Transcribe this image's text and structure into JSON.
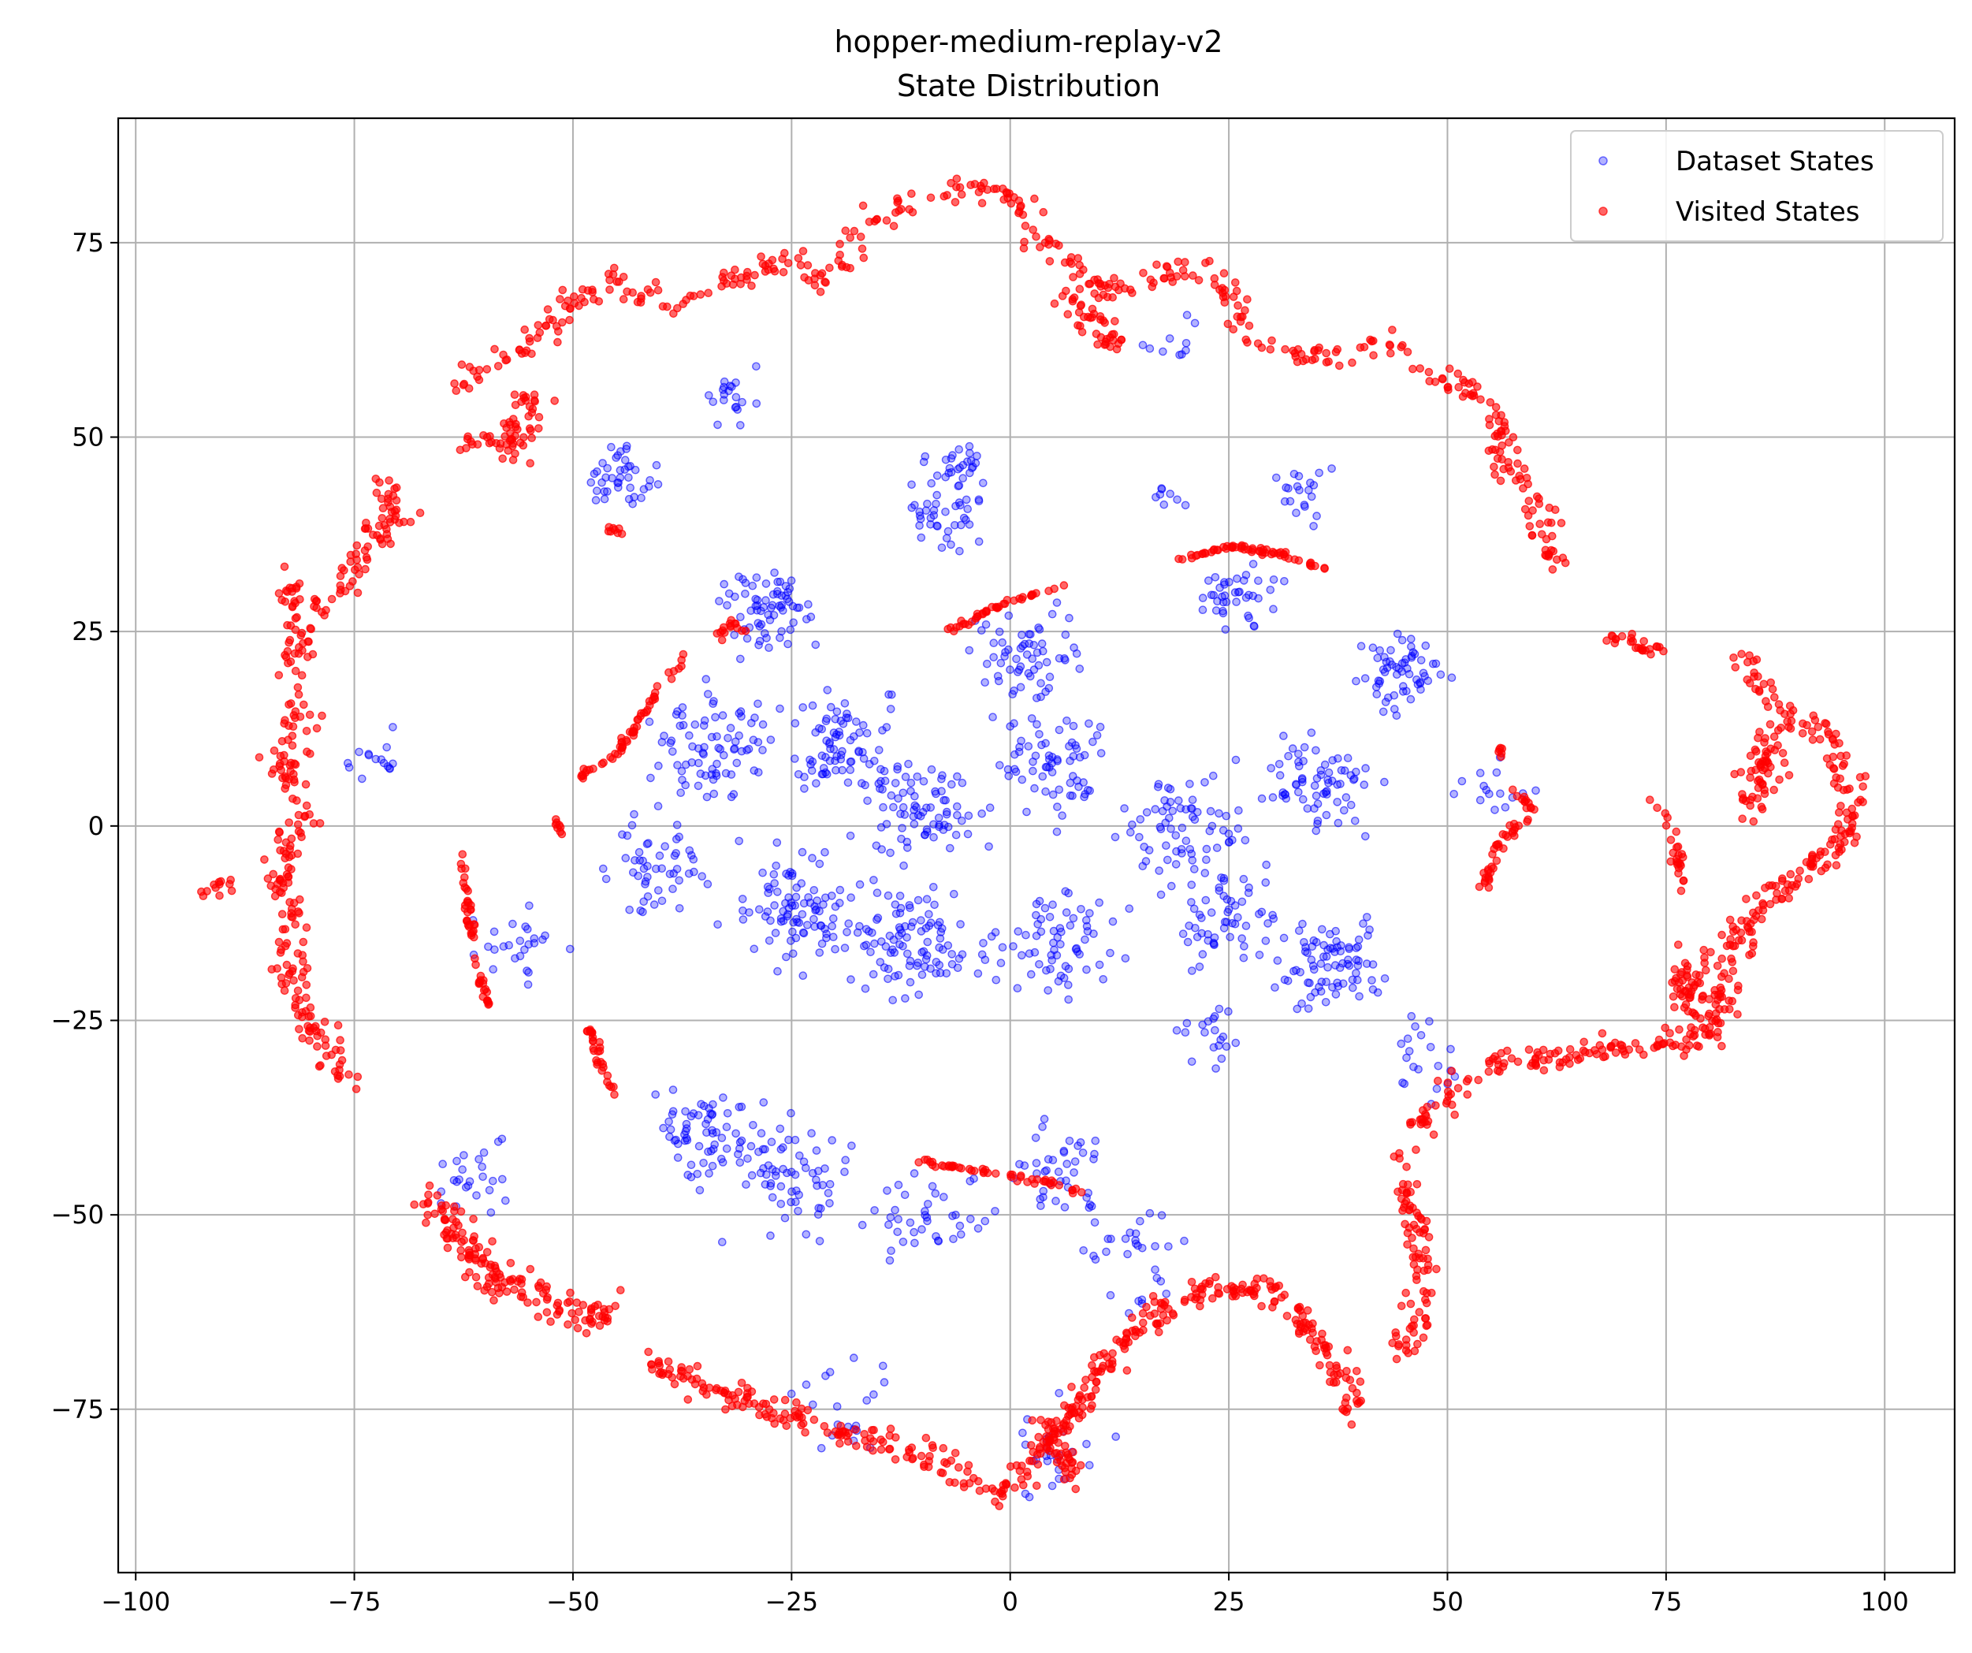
{
  "chart_data": {
    "type": "scatter",
    "title_lines": [
      "hopper-medium-replay-v2",
      "State Distribution"
    ],
    "xlabel": "",
    "ylabel": "",
    "xlim": [
      -102,
      108
    ],
    "ylim": [
      -96,
      91
    ],
    "x_ticks": [
      -100,
      -75,
      -50,
      -25,
      0,
      25,
      50,
      75,
      100
    ],
    "y_ticks": [
      -75,
      -50,
      -25,
      0,
      25,
      50,
      75
    ],
    "x_tick_labels": [
      "−100",
      "−75",
      "−50",
      "−25",
      "0",
      "25",
      "50",
      "75",
      "100"
    ],
    "y_tick_labels": [
      "−75",
      "−50",
      "−25",
      "0",
      "25",
      "50",
      "75"
    ],
    "grid": true,
    "legend_position": "top-right",
    "series": [
      {
        "name": "Dataset States",
        "color": "#0000ff",
        "clusters": [
          {
            "cx": -28,
            "cy": 28,
            "spread": 5,
            "count": 70
          },
          {
            "cx": -35,
            "cy": 10,
            "spread": 6,
            "count": 80
          },
          {
            "cx": -20,
            "cy": 12,
            "spread": 6,
            "count": 80
          },
          {
            "cx": -8,
            "cy": 40,
            "spread": 4,
            "count": 40
          },
          {
            "cx": -6,
            "cy": 47,
            "spread": 3,
            "count": 25
          },
          {
            "cx": 2,
            "cy": 22,
            "spread": 5,
            "count": 60
          },
          {
            "cx": 5,
            "cy": 8,
            "spread": 6,
            "count": 70
          },
          {
            "cx": -10,
            "cy": 2,
            "spread": 6,
            "count": 80
          },
          {
            "cx": -25,
            "cy": -10,
            "spread": 6,
            "count": 90
          },
          {
            "cx": -12,
            "cy": -15,
            "spread": 6,
            "count": 100
          },
          {
            "cx": 5,
            "cy": -15,
            "spread": 6,
            "count": 70
          },
          {
            "cx": 20,
            "cy": 0,
            "spread": 6,
            "count": 70
          },
          {
            "cx": 35,
            "cy": 5,
            "spread": 6,
            "count": 70
          },
          {
            "cx": 25,
            "cy": -12,
            "spread": 5,
            "count": 60
          },
          {
            "cx": 37,
            "cy": -18,
            "spread": 5,
            "count": 80
          },
          {
            "cx": 45,
            "cy": 20,
            "spread": 4,
            "count": 60
          },
          {
            "cx": 26,
            "cy": 30,
            "spread": 4,
            "count": 40
          },
          {
            "cx": -40,
            "cy": -5,
            "spread": 5,
            "count": 50
          },
          {
            "cx": -35,
            "cy": -40,
            "spread": 5,
            "count": 70
          },
          {
            "cx": -25,
            "cy": -45,
            "spread": 6,
            "count": 60
          },
          {
            "cx": -10,
            "cy": -50,
            "spread": 6,
            "count": 40
          },
          {
            "cx": 5,
            "cy": -45,
            "spread": 5,
            "count": 40
          },
          {
            "cx": 15,
            "cy": -55,
            "spread": 6,
            "count": 30
          },
          {
            "cx": -45,
            "cy": 45,
            "spread": 4,
            "count": 40
          },
          {
            "cx": -32,
            "cy": 55,
            "spread": 3,
            "count": 20
          },
          {
            "cx": -57,
            "cy": -15,
            "spread": 4,
            "count": 25
          },
          {
            "cx": -60,
            "cy": -45,
            "spread": 4,
            "count": 25
          },
          {
            "cx": -73,
            "cy": 9,
            "spread": 3,
            "count": 15
          },
          {
            "cx": 33,
            "cy": 43,
            "spread": 3,
            "count": 20
          },
          {
            "cx": 18,
            "cy": 42,
            "spread": 2,
            "count": 8
          },
          {
            "cx": -20,
            "cy": -75,
            "spread": 6,
            "count": 20
          },
          {
            "cx": 5,
            "cy": -80,
            "spread": 5,
            "count": 25
          },
          {
            "cx": 20,
            "cy": 62,
            "spread": 3,
            "count": 10
          },
          {
            "cx": 55,
            "cy": 5,
            "spread": 4,
            "count": 15
          },
          {
            "cx": 47,
            "cy": -30,
            "spread": 4,
            "count": 20
          },
          {
            "cx": 22,
            "cy": -28,
            "spread": 4,
            "count": 20
          }
        ]
      },
      {
        "name": "Visited States",
        "color": "#ff0000",
        "paths": [
          {
            "points": [
              [
                -63,
                57
              ],
              [
                -55,
                62
              ],
              [
                -50,
                67
              ],
              [
                -45,
                71
              ],
              [
                -42,
                68
              ],
              [
                -38,
                67
              ],
              [
                -33,
                70
              ],
              [
                -27,
                72
              ],
              [
                -25,
                74
              ],
              [
                -22,
                70
              ],
              [
                -20,
                70
              ],
              [
                -17,
                77
              ],
              [
                -12,
                80
              ],
              [
                -5,
                82
              ],
              [
                0,
                81
              ],
              [
                3,
                76
              ],
              [
                7,
                72
              ],
              [
                12,
                69
              ],
              [
                16,
                71
              ],
              [
                22,
                71
              ],
              [
                25,
                69
              ],
              [
                28,
                62
              ],
              [
                32,
                61
              ],
              [
                38,
                60
              ],
              [
                44,
                62
              ],
              [
                48,
                57
              ],
              [
                52,
                57
              ],
              [
                55,
                54
              ],
              [
                57,
                45
              ],
              [
                59,
                45
              ],
              [
                61,
                38
              ],
              [
                63,
                33
              ]
            ],
            "spread": 1.5,
            "count": 420
          },
          {
            "points": [
              [
                -62,
                50
              ],
              [
                -57,
                49
              ],
              [
                -54,
                56
              ]
            ],
            "spread": 2,
            "count": 60
          },
          {
            "points": [
              [
                6,
                68
              ],
              [
                10,
                64
              ],
              [
                12,
                62
              ]
            ],
            "spread": 1.5,
            "count": 40
          },
          {
            "points": [
              [
                -73,
                46
              ],
              [
                -70,
                40
              ],
              [
                -74,
                35
              ],
              [
                -76,
                30
              ],
              [
                -79,
                28
              ],
              [
                -83,
                32
              ],
              [
                -81,
                25
              ],
              [
                -82,
                18
              ],
              [
                -81,
                12
              ],
              [
                -84,
                9
              ],
              [
                -80,
                2
              ],
              [
                -84,
                -5
              ],
              [
                -82,
                -12
              ],
              [
                -82,
                -20
              ],
              [
                -80,
                -25
              ],
              [
                -76,
                -33
              ]
            ],
            "spread": 1.8,
            "count": 300
          },
          {
            "points": [
              [
                -92,
                -8
              ],
              [
                -89,
                -7
              ]
            ],
            "spread": 1,
            "count": 12
          },
          {
            "points": [
              [
                -67,
                -48
              ],
              [
                -63,
                -52
              ],
              [
                -60,
                -58
              ],
              [
                -55,
                -60
              ],
              [
                -48,
                -63
              ],
              [
                -45,
                -62
              ]
            ],
            "spread": 2,
            "count": 150
          },
          {
            "points": [
              [
                -41,
                -69
              ],
              [
                -35,
                -72
              ],
              [
                -28,
                -75
              ],
              [
                -20,
                -78
              ],
              [
                -12,
                -80
              ],
              [
                -6,
                -83
              ],
              [
                -2,
                -86
              ],
              [
                0,
                -85
              ],
              [
                4,
                -80
              ],
              [
                8,
                -75
              ],
              [
                10,
                -70
              ],
              [
                13,
                -67
              ],
              [
                17,
                -62
              ],
              [
                23,
                -59
              ],
              [
                30,
                -60
              ],
              [
                35,
                -66
              ],
              [
                38,
                -71
              ],
              [
                39,
                -74
              ],
              [
                38,
                -76
              ]
            ],
            "spread": 1.5,
            "count": 420
          },
          {
            "points": [
              [
                3,
                -77
              ],
              [
                6,
                -80
              ],
              [
                8,
                -85
              ]
            ],
            "spread": 1.5,
            "count": 40
          },
          {
            "points": [
              [
                45,
                -68
              ],
              [
                47,
                -62
              ],
              [
                47,
                -55
              ],
              [
                46,
                -48
              ],
              [
                45,
                -43
              ],
              [
                46,
                -40
              ],
              [
                48,
                -37
              ],
              [
                52,
                -33
              ],
              [
                57,
                -30
              ],
              [
                62,
                -30
              ],
              [
                68,
                -29
              ],
              [
                72,
                -28
              ],
              [
                75,
                -28
              ],
              [
                77,
                -28
              ],
              [
                80,
                -27
              ],
              [
                82,
                -20
              ],
              [
                83,
                -15
              ],
              [
                86,
                -10
              ],
              [
                89,
                -8
              ],
              [
                92,
                -5
              ],
              [
                96,
                0
              ],
              [
                96,
                6
              ],
              [
                93,
                12
              ],
              [
                89,
                14
              ],
              [
                86,
                18
              ],
              [
                84,
                23
              ]
            ],
            "spread": 1.5,
            "count": 420
          },
          {
            "points": [
              [
                79,
                -16
              ],
              [
                77,
                -22
              ],
              [
                81,
                -25
              ]
            ],
            "spread": 2,
            "count": 60
          },
          {
            "points": [
              [
                85,
                2
              ],
              [
                86,
                8
              ],
              [
                88,
                12
              ]
            ],
            "spread": 2,
            "count": 60
          },
          {
            "points": [
              [
                69,
                24
              ],
              [
                72,
                23
              ],
              [
                75,
                22
              ]
            ],
            "spread": 1,
            "count": 25
          },
          {
            "points": [
              [
                74,
                4
              ],
              [
                76,
                -2
              ],
              [
                77,
                -8
              ]
            ],
            "spread": 0.7,
            "count": 25
          },
          {
            "points": [
              [
                54,
                -8
              ],
              [
                56,
                -2
              ],
              [
                59,
                1
              ]
            ],
            "spread": 0.5,
            "count": 35
          },
          {
            "points": [
              [
                57,
                5
              ],
              [
                60,
                2
              ]
            ],
            "spread": 0.4,
            "count": 12
          },
          {
            "points": [
              [
                56,
                9
              ],
              [
                56,
                10
              ]
            ],
            "spread": 0.3,
            "count": 6
          },
          {
            "points": [
              [
                -46,
                38
              ],
              [
                -44,
                38
              ]
            ],
            "spread": 0.5,
            "count": 8
          },
          {
            "points": [
              [
                19,
                34
              ],
              [
                25,
                36
              ],
              [
                31,
                35
              ],
              [
                36,
                33
              ]
            ],
            "spread": 0.3,
            "count": 60
          },
          {
            "points": [
              [
                -7,
                25
              ],
              [
                -2,
                28
              ],
              [
                3,
                30
              ],
              [
                7,
                31
              ]
            ],
            "spread": 0.3,
            "count": 40
          },
          {
            "points": [
              [
                -50,
                6
              ],
              [
                -45,
                9
              ],
              [
                -40,
                18
              ],
              [
                -37,
                22
              ]
            ],
            "spread": 0.4,
            "count": 55
          },
          {
            "points": [
              [
                -34,
                24
              ],
              [
                -32,
                26
              ],
              [
                -30,
                25
              ]
            ],
            "spread": 0.4,
            "count": 15
          },
          {
            "points": [
              [
                -52,
                1
              ],
              [
                -51,
                -2
              ]
            ],
            "spread": 0.4,
            "count": 8
          },
          {
            "points": [
              [
                -63,
                -3
              ],
              [
                -62,
                -10
              ],
              [
                -61,
                -18
              ],
              [
                -60,
                -22
              ],
              [
                -59,
                -24
              ]
            ],
            "spread": 0.4,
            "count": 50
          },
          {
            "points": [
              [
                -48,
                -26
              ],
              [
                -47,
                -30
              ],
              [
                -45,
                -35
              ]
            ],
            "spread": 0.4,
            "count": 30
          },
          {
            "points": [
              [
                -11,
                -43
              ],
              [
                -5,
                -44
              ],
              [
                0,
                -45
              ],
              [
                5,
                -46
              ],
              [
                8,
                -47
              ]
            ],
            "spread": 0.4,
            "count": 50
          }
        ]
      }
    ]
  }
}
